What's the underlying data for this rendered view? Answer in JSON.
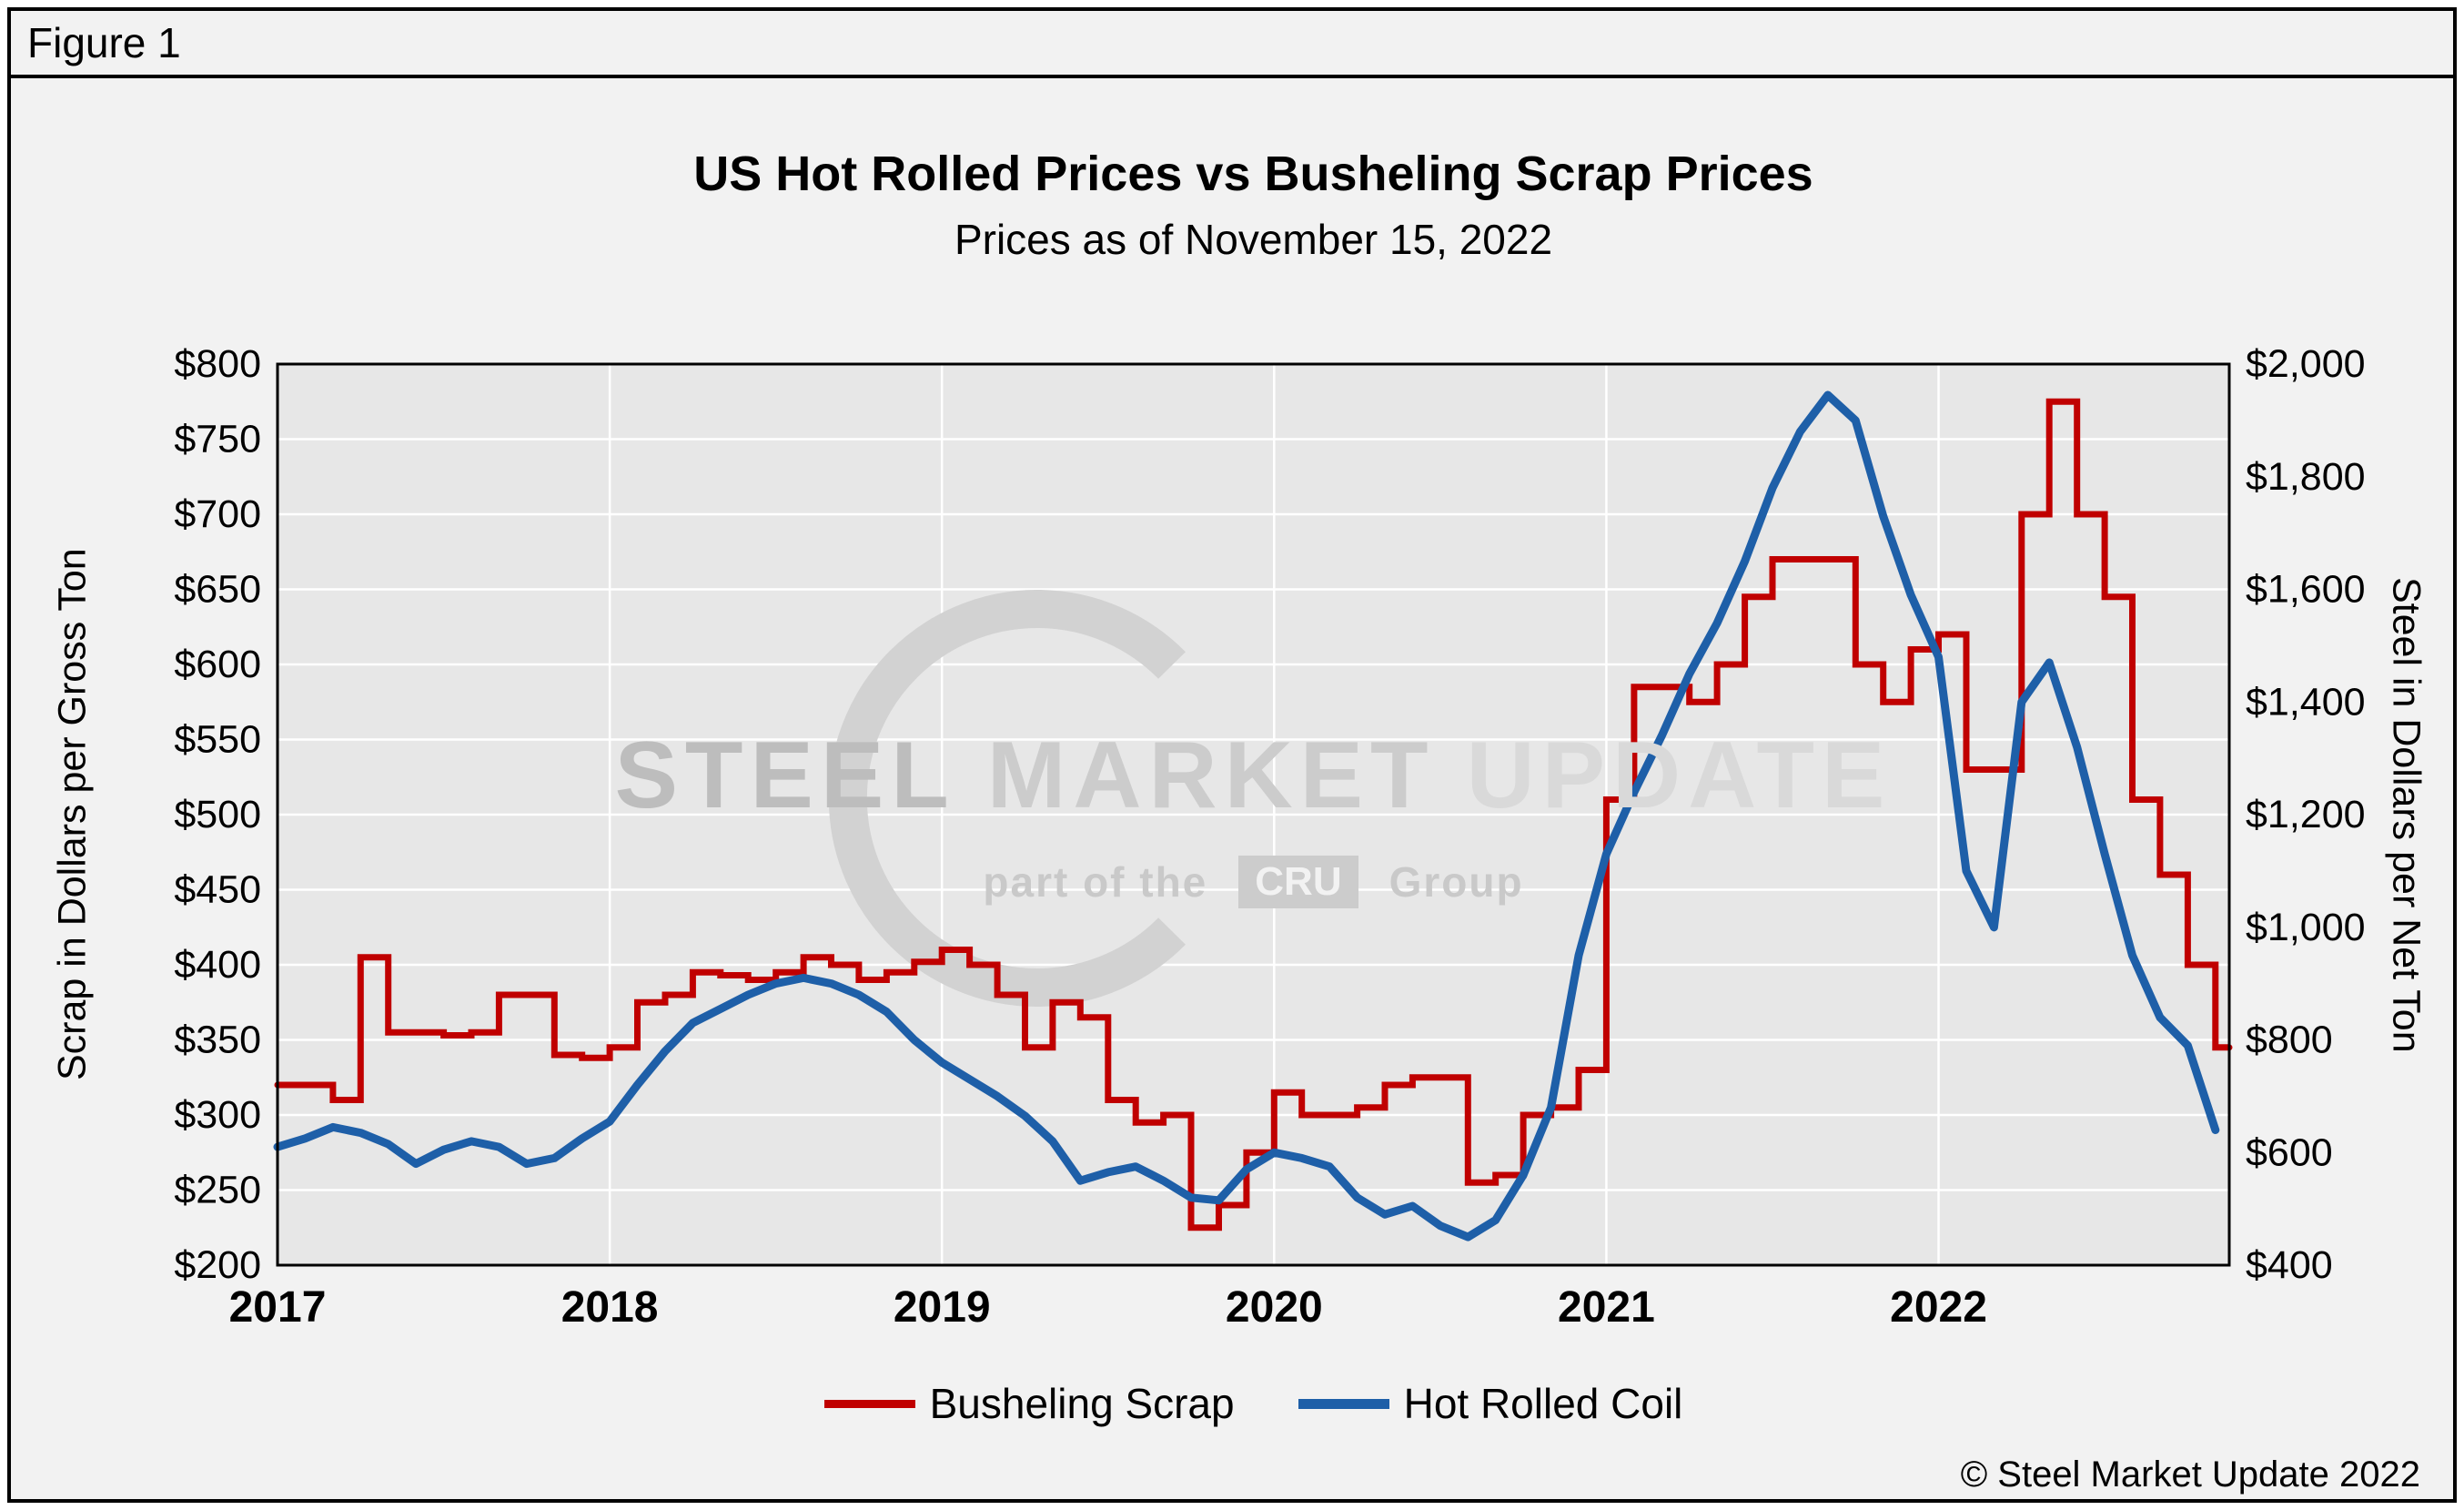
{
  "figure_label": "Figure 1",
  "footer": {
    "copyright": "© Steel Market Update 2022"
  },
  "watermark": {
    "steel": "STEEL",
    "market": "MARKET",
    "update": "UPDATE",
    "part_of_the": "part of the",
    "cru": "CRU",
    "group": "Group"
  },
  "chart_data": {
    "type": "line",
    "title": "US Hot Rolled Prices vs Busheling Scrap Prices",
    "subtitle": "Prices as of November 15, 2022",
    "plot_bg": "#e7e7e7",
    "grid_color": "#ffffff",
    "border_color": "#000000",
    "legend_position": "bottom",
    "grid": true,
    "x_axis": {
      "min": 2017,
      "max": 2022.875,
      "ticks": [
        {
          "value": 2017,
          "label": "2017"
        },
        {
          "value": 2018,
          "label": "2018"
        },
        {
          "value": 2019,
          "label": "2019"
        },
        {
          "value": 2020,
          "label": "2020"
        },
        {
          "value": 2021,
          "label": "2021"
        },
        {
          "value": 2022,
          "label": "2022"
        }
      ]
    },
    "y_left": {
      "label": "Scrap in Dollars per Gross Ton",
      "min": 200,
      "max": 800,
      "ticks": [
        {
          "value": 800,
          "label": "$800"
        },
        {
          "value": 750,
          "label": "$750"
        },
        {
          "value": 700,
          "label": "$700"
        },
        {
          "value": 650,
          "label": "$650"
        },
        {
          "value": 600,
          "label": "$600"
        },
        {
          "value": 550,
          "label": "$550"
        },
        {
          "value": 500,
          "label": "$500"
        },
        {
          "value": 450,
          "label": "$450"
        },
        {
          "value": 400,
          "label": "$400"
        },
        {
          "value": 350,
          "label": "$350"
        },
        {
          "value": 300,
          "label": "$300"
        },
        {
          "value": 250,
          "label": "$250"
        },
        {
          "value": 200,
          "label": "$200"
        }
      ]
    },
    "y_right": {
      "label": "Steel in Dollars per Net Ton",
      "min": 400,
      "max": 2000,
      "ticks": [
        {
          "value": 2000,
          "label": "$2,000"
        },
        {
          "value": 1800,
          "label": "$1,800"
        },
        {
          "value": 1600,
          "label": "$1,600"
        },
        {
          "value": 1400,
          "label": "$1,400"
        },
        {
          "value": 1200,
          "label": "$1,200"
        },
        {
          "value": 1000,
          "label": "$1,000"
        },
        {
          "value": 800,
          "label": "$800"
        },
        {
          "value": 600,
          "label": "$600"
        },
        {
          "value": 400,
          "label": "$400"
        }
      ]
    },
    "series": [
      {
        "name": "Busheling Scrap",
        "axis": "left",
        "units": "USD per gross ton, monthly",
        "color": "#C00000",
        "line_style": "step",
        "line_width": 7,
        "x_start": 2017.0,
        "points_per_year": 12,
        "values": [
          320,
          320,
          310,
          405,
          355,
          355,
          353,
          355,
          380,
          380,
          340,
          338,
          345,
          375,
          380,
          395,
          393,
          390,
          395,
          405,
          400,
          390,
          395,
          402,
          410,
          400,
          380,
          345,
          375,
          365,
          310,
          295,
          300,
          225,
          240,
          275,
          315,
          300,
          300,
          305,
          320,
          325,
          325,
          255,
          260,
          300,
          305,
          330,
          510,
          585,
          585,
          575,
          600,
          645,
          670,
          670,
          670,
          600,
          575,
          610,
          620,
          530,
          530,
          700,
          775,
          700,
          645,
          510,
          460,
          400,
          345
        ]
      },
      {
        "name": "Hot Rolled Coil",
        "axis": "right",
        "units": "USD per net ton, monthly",
        "color": "#1E5FA8",
        "line_style": "line",
        "line_width": 9,
        "x_start": 2017.0,
        "points_per_year": 12,
        "values": [
          610,
          625,
          645,
          635,
          615,
          580,
          605,
          620,
          610,
          580,
          590,
          625,
          655,
          720,
          780,
          830,
          855,
          880,
          900,
          910,
          900,
          880,
          850,
          800,
          760,
          730,
          700,
          665,
          620,
          550,
          565,
          575,
          550,
          520,
          515,
          570,
          600,
          590,
          575,
          520,
          490,
          505,
          470,
          450,
          480,
          560,
          680,
          950,
          1130,
          1240,
          1340,
          1450,
          1540,
          1650,
          1780,
          1880,
          1945,
          1900,
          1730,
          1590,
          1480,
          1100,
          1000,
          1400,
          1470,
          1320,
          1130,
          950,
          840,
          790,
          640
        ]
      }
    ]
  }
}
